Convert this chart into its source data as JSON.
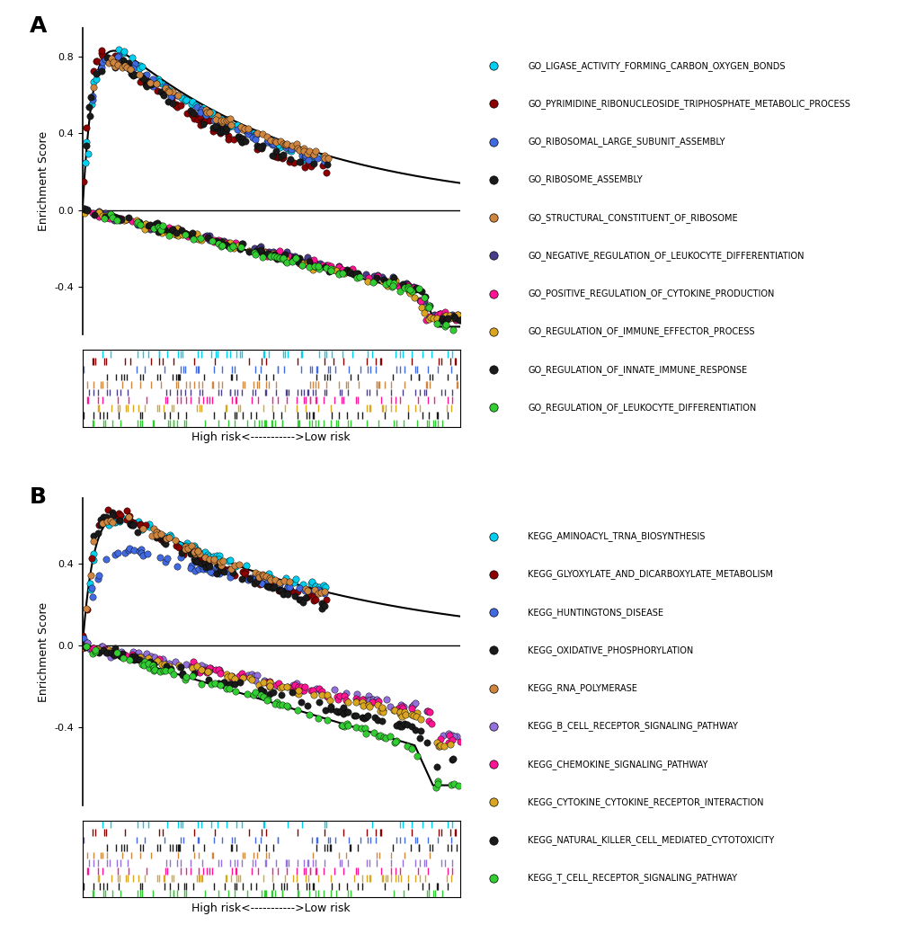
{
  "panel_A": {
    "label": "A",
    "ylim": [
      -0.65,
      0.95
    ],
    "yticks": [
      -0.4,
      0.0,
      0.4,
      0.8
    ],
    "ylabel": "Enrichment Score",
    "xlabel": "High risk<----------->Low risk",
    "high_risk_curves": [
      {
        "color": "#00CFEF",
        "peak": 0.85,
        "steepness": 40,
        "decay": 2.2,
        "seed": 1
      },
      {
        "color": "#8B0000",
        "peak": 0.82,
        "steepness": 45,
        "decay": 2.5,
        "seed": 2
      },
      {
        "color": "#4169E1",
        "peak": 0.8,
        "steepness": 38,
        "decay": 2.1,
        "seed": 3
      },
      {
        "color": "#1A1A1A",
        "peak": 0.78,
        "steepness": 42,
        "decay": 2.3,
        "seed": 4
      },
      {
        "color": "#CD853F",
        "peak": 0.77,
        "steepness": 35,
        "decay": 1.9,
        "seed": 5
      }
    ],
    "low_risk_curves": [
      {
        "color": "#483D8B",
        "peak": -0.52,
        "inflection": 0.88,
        "seed": 11
      },
      {
        "color": "#FF1493",
        "peak": -0.53,
        "inflection": 0.87,
        "seed": 12
      },
      {
        "color": "#DAA520",
        "peak": -0.54,
        "inflection": 0.86,
        "seed": 13
      },
      {
        "color": "#1A1A1A",
        "peak": -0.54,
        "inflection": 0.89,
        "seed": 14
      },
      {
        "color": "#32CD32",
        "peak": -0.58,
        "inflection": 0.9,
        "seed": 15
      }
    ],
    "main_high_peak": 0.83,
    "main_high_steepness": 35,
    "main_high_decay": 2.0,
    "main_low_peak": -0.58,
    "main_low_inflection": 0.9,
    "bar_colors_order": [
      "#00CFEF",
      "#8B0000",
      "#4169E1",
      "#1A1A1A",
      "#CD853F",
      "#483D8B",
      "#FF1493",
      "#DAA520",
      "#1A1A1A",
      "#32CD32"
    ],
    "bar_n_genes": 500,
    "bar_n_per_pathway": [
      45,
      30,
      40,
      35,
      50,
      55,
      48,
      42,
      38,
      60
    ]
  },
  "panel_B": {
    "label": "B",
    "ylim": [
      -0.78,
      0.72
    ],
    "yticks": [
      -0.4,
      0.0,
      0.4
    ],
    "ylabel": "Enrichment Score",
    "xlabel": "High risk<----------->Low risk",
    "high_risk_curves": [
      {
        "color": "#00CFEF",
        "peak": 0.62,
        "steepness": 30,
        "decay": 1.6,
        "seed": 21
      },
      {
        "color": "#8B0000",
        "peak": 0.65,
        "steepness": 38,
        "decay": 2.0,
        "seed": 22
      },
      {
        "color": "#4169E1",
        "peak": 0.46,
        "steepness": 25,
        "decay": 1.2,
        "seed": 23
      },
      {
        "color": "#1A1A1A",
        "peak": 0.64,
        "steepness": 40,
        "decay": 2.1,
        "seed": 24
      },
      {
        "color": "#CD853F",
        "peak": 0.62,
        "steepness": 32,
        "decay": 1.7,
        "seed": 25
      }
    ],
    "low_risk_curves": [
      {
        "color": "#9370DB",
        "peak": -0.42,
        "inflection": 0.92,
        "seed": 31
      },
      {
        "color": "#FF1493",
        "peak": -0.44,
        "inflection": 0.91,
        "seed": 32
      },
      {
        "color": "#DAA520",
        "peak": -0.46,
        "inflection": 0.9,
        "seed": 33
      },
      {
        "color": "#1A1A1A",
        "peak": -0.55,
        "inflection": 0.89,
        "seed": 34
      },
      {
        "color": "#32CD32",
        "peak": -0.65,
        "inflection": 0.88,
        "seed": 35
      }
    ],
    "main_high_peak": 0.63,
    "main_high_steepness": 30,
    "main_high_decay": 1.7,
    "main_low_peak": -0.65,
    "main_low_inflection": 0.88,
    "bar_colors_order": [
      "#00CFEF",
      "#8B0000",
      "#4169E1",
      "#1A1A1A",
      "#CD853F",
      "#9370DB",
      "#FF1493",
      "#DAA520",
      "#1A1A1A",
      "#32CD32"
    ],
    "bar_n_genes": 500,
    "bar_n_per_pathway": [
      30,
      25,
      35,
      40,
      28,
      50,
      45,
      55,
      42,
      48
    ]
  },
  "legend_A": [
    {
      "label": "GO_LIGASE_ACTIVITY_FORMING_CARBON_OXYGEN_BONDS",
      "color": "#00CFEF"
    },
    {
      "label": "GO_PYRIMIDINE_RIBONUCLEOSIDE_TRIPHOSPHATE_METABOLIC_PROCESS",
      "color": "#8B0000"
    },
    {
      "label": "GO_RIBOSOMAL_LARGE_SUBUNIT_ASSEMBLY",
      "color": "#4169E1"
    },
    {
      "label": "GO_RIBOSOME_ASSEMBLY",
      "color": "#1A1A1A"
    },
    {
      "label": "GO_STRUCTURAL_CONSTITUENT_OF_RIBOSOME",
      "color": "#CD853F"
    },
    {
      "label": "GO_NEGATIVE_REGULATION_OF_LEUKOCYTE_DIFFERENTIATION",
      "color": "#483D8B"
    },
    {
      "label": "GO_POSITIVE_REGULATION_OF_CYTOKINE_PRODUCTION",
      "color": "#FF1493"
    },
    {
      "label": "GO_REGULATION_OF_IMMUNE_EFFECTOR_PROCESS",
      "color": "#DAA520"
    },
    {
      "label": "GO_REGULATION_OF_INNATE_IMMUNE_RESPONSE",
      "color": "#1A1A1A"
    },
    {
      "label": "GO_REGULATION_OF_LEUKOCYTE_DIFFERENTIATION",
      "color": "#32CD32"
    }
  ],
  "legend_B": [
    {
      "label": "KEGG_AMINOACYL_TRNA_BIOSYNTHESIS",
      "color": "#00CFEF"
    },
    {
      "label": "KEGG_GLYOXYLATE_AND_DICARBOXYLATE_METABOLISM",
      "color": "#8B0000"
    },
    {
      "label": "KEGG_HUNTINGTONS_DISEASE",
      "color": "#4169E1"
    },
    {
      "label": "KEGG_OXIDATIVE_PHOSPHORYLATION",
      "color": "#1A1A1A"
    },
    {
      "label": "KEGG_RNA_POLYMERASE",
      "color": "#CD853F"
    },
    {
      "label": "KEGG_B_CELL_RECEPTOR_SIGNALING_PATHWAY",
      "color": "#9370DB"
    },
    {
      "label": "KEGG_CHEMOKINE_SIGNALING_PATHWAY",
      "color": "#FF1493"
    },
    {
      "label": "KEGG_CYTOKINE_CYTOKINE_RECEPTOR_INTERACTION",
      "color": "#DAA520"
    },
    {
      "label": "KEGG_NATURAL_KILLER_CELL_MEDIATED_CYTOTOXICITY",
      "color": "#1A1A1A"
    },
    {
      "label": "KEGG_T_CELL_RECEPTOR_SIGNALING_PATHWAY",
      "color": "#32CD32"
    }
  ]
}
